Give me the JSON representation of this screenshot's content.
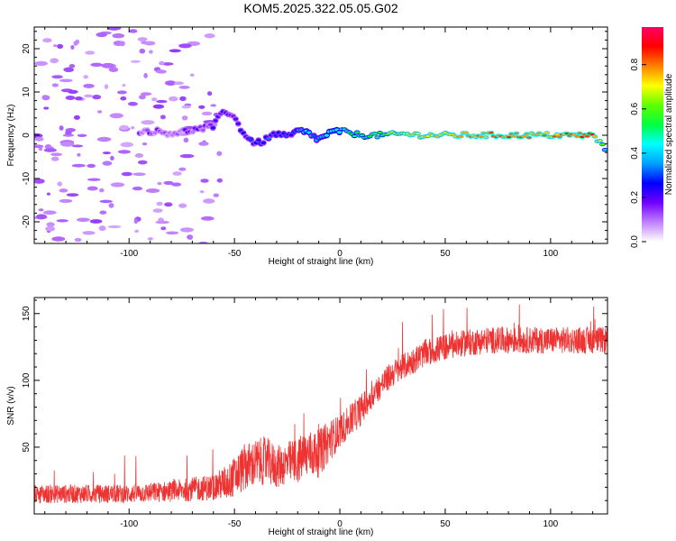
{
  "title": "KOM5.2025.322.05.05.G02",
  "chart_data": [
    {
      "type": "heatmap",
      "name": "spectrogram",
      "xlabel": "Height of straight line (km)",
      "ylabel": "Frequency (Hz)",
      "xlim": [
        -145,
        127
      ],
      "ylim": [
        -25,
        25
      ],
      "xticks": [
        -100,
        -50,
        0,
        50,
        100
      ],
      "xtick_labels": [
        "-100",
        "-50",
        "0",
        "50",
        "100"
      ],
      "yticks": [
        20,
        10,
        0,
        -10,
        -20
      ],
      "ytick_labels": [
        "20",
        "10",
        "0",
        "-10",
        "-20"
      ],
      "ridge": {
        "description": "dominant frequency track",
        "x": [
          -90,
          -80,
          -72,
          -60,
          -55,
          -50,
          -45,
          -40,
          -35,
          -30,
          -25,
          -20,
          -15,
          -10,
          -5,
          0,
          5,
          10,
          20,
          30,
          40,
          60,
          80,
          100,
          115,
          120,
          124,
          127
        ],
        "y": [
          1,
          0.5,
          1,
          2,
          6,
          4,
          0,
          -2,
          -1,
          0.5,
          -0.5,
          1,
          0.5,
          -1,
          0.5,
          1,
          0.5,
          0,
          0,
          0.3,
          0,
          0,
          0,
          0,
          0,
          0,
          -2,
          -4
        ],
        "amplitude": [
          0.15,
          0.12,
          0.15,
          0.18,
          0.2,
          0.22,
          0.25,
          0.25,
          0.3,
          0.28,
          0.3,
          0.35,
          0.4,
          0.35,
          0.45,
          0.5,
          0.5,
          0.55,
          0.6,
          0.7,
          0.75,
          0.8,
          0.85,
          0.8,
          0.85,
          0.9,
          0.6,
          0.4
        ]
      },
      "colorbar": {
        "label": "Normalized spectral amplitude",
        "range": [
          0.0,
          0.97
        ],
        "ticks": [
          0.0,
          0.2,
          0.4,
          0.6,
          0.8
        ],
        "tick_labels": [
          "0.0",
          "0.2",
          "0.4",
          "0.6",
          "0.8"
        ],
        "colors": [
          "#ffffff",
          "#c080ff",
          "#7000ff",
          "#0000ff",
          "#00a0ff",
          "#00ffff",
          "#00ff40",
          "#60ff00",
          "#ffff00",
          "#ff8000",
          "#ff0000",
          "#ff0066"
        ]
      }
    },
    {
      "type": "line",
      "name": "snr",
      "xlabel": "Height of straight line (km)",
      "ylabel": "SNR (v/v)",
      "xlim": [
        -145,
        127
      ],
      "ylim": [
        0,
        162
      ],
      "xticks": [
        -100,
        -50,
        0,
        50,
        100
      ],
      "xtick_labels": [
        "-100",
        "-50",
        "0",
        "50",
        "100"
      ],
      "yticks": [
        150,
        100,
        50
      ],
      "ytick_labels": [
        "150",
        "100",
        "50"
      ],
      "color": "#ee3333",
      "trend": {
        "x": [
          -145,
          -120,
          -100,
          -80,
          -60,
          -52,
          -45,
          -40,
          -35,
          -30,
          -25,
          -20,
          -15,
          -10,
          -5,
          0,
          5,
          10,
          15,
          20,
          25,
          30,
          35,
          40,
          50,
          60,
          70,
          80,
          90,
          100,
          110,
          120,
          127
        ],
        "y": [
          15,
          15,
          15,
          17,
          20,
          25,
          35,
          38,
          40,
          35,
          38,
          40,
          45,
          45,
          55,
          62,
          70,
          78,
          88,
          97,
          105,
          110,
          115,
          120,
          125,
          128,
          130,
          130,
          130,
          130,
          130,
          130,
          130
        ],
        "noise": [
          7,
          7,
          7,
          8,
          10,
          14,
          18,
          18,
          18,
          16,
          16,
          18,
          18,
          18,
          16,
          12,
          12,
          12,
          10,
          10,
          10,
          10,
          10,
          10,
          10,
          10,
          10,
          10,
          10,
          10,
          10,
          10,
          10
        ]
      }
    }
  ]
}
